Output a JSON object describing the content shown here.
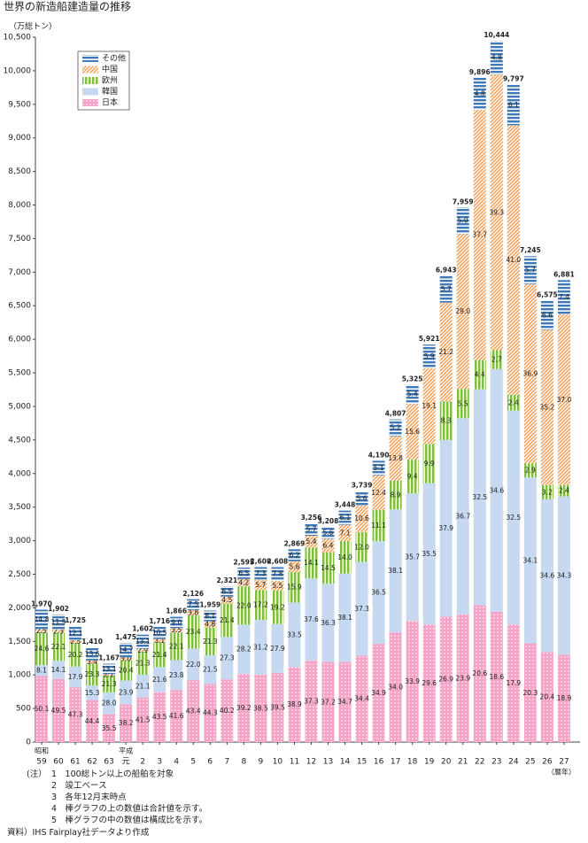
{
  "chart_data": {
    "type": "stacked_bar_percent",
    "title": "世界の新造船建造量の推移",
    "y_label": "（万総トン）",
    "x_unit": "（暦年）",
    "categories": [
      "59",
      "60",
      "61",
      "62",
      "63",
      "元",
      "2",
      "3",
      "4",
      "5",
      "6",
      "7",
      "8",
      "9",
      "10",
      "11",
      "12",
      "13",
      "14",
      "15",
      "16",
      "17",
      "18",
      "19",
      "20",
      "21",
      "22",
      "23",
      "24",
      "25",
      "26",
      "27"
    ],
    "era_labels": [
      "昭和",
      null,
      null,
      null,
      null,
      "平成",
      null,
      null,
      null,
      null,
      null,
      null,
      null,
      null,
      null,
      null,
      null,
      null,
      null,
      null,
      null,
      null,
      null,
      null,
      null,
      null,
      null,
      null,
      null,
      null,
      null,
      null
    ],
    "ylim": [
      0,
      10500
    ],
    "yticks": [
      0,
      500,
      {
        "value": 1000,
        "label": "1,000"
      },
      {
        "value": 1500,
        "label": "1,500"
      },
      {
        "value": 2000,
        "label": "2,000"
      },
      {
        "value": 2500,
        "label": "2,500"
      },
      {
        "value": 3000,
        "label": "3,000"
      },
      {
        "value": 3500,
        "label": "3,500"
      },
      {
        "value": 4000,
        "label": "4,000"
      },
      {
        "value": 4500,
        "label": "4,500"
      },
      {
        "value": 5000,
        "label": "5,000"
      },
      {
        "value": 5500,
        "label": "5,500"
      },
      {
        "value": 6000,
        "label": "6,000"
      },
      {
        "value": 6500,
        "label": "6,500"
      },
      {
        "value": 7000,
        "label": "7,000"
      },
      {
        "value": 7500,
        "label": "7,500"
      },
      {
        "value": 8000,
        "label": "8,000"
      },
      {
        "value": 8500,
        "label": "8,500"
      },
      {
        "value": 9000,
        "label": "9,000"
      },
      {
        "value": 9500,
        "label": "9,500"
      },
      {
        "value": 10000,
        "label": "10,000"
      },
      {
        "value": 10500,
        "label": "10,500"
      }
    ],
    "totals": [
      1970,
      1902,
      1725,
      1410,
      1167,
      1475,
      1602,
      1716,
      1866,
      2126,
      1959,
      2321,
      2595,
      2608,
      2608,
      2869,
      3256,
      3208,
      3448,
      3739,
      4190,
      4807,
      5325,
      5921,
      6943,
      7959,
      9896,
      10444,
      9797,
      7245,
      6575,
      6881
    ],
    "totals_labels": [
      "1,970",
      "1,902",
      "1,725",
      "1,410",
      "1,167",
      "1,475",
      "1,602",
      "1,716",
      "1,866",
      "2,126",
      "1,959",
      "2,321",
      "2,595",
      "2,608",
      "2,608",
      "2,869",
      "3,256",
      "3,208",
      "3,448",
      "3,739",
      "4,190",
      "4,807",
      "5,325",
      "5,921",
      "6,943",
      "7,959",
      "9,896",
      "10,444",
      "9,797",
      "7,245",
      "6,575",
      "6,881"
    ],
    "series": [
      {
        "name": "日本",
        "color": "#f5a3c7",
        "values": [
          50.1,
          49.5,
          47.3,
          44.4,
          35.5,
          38.2,
          41.5,
          43.5,
          41.6,
          43.4,
          44.3,
          40.2,
          39.2,
          38.5,
          39.5,
          38.9,
          37.3,
          37.2,
          34.7,
          34.4,
          34.9,
          34.0,
          33.9,
          29.6,
          26.9,
          23.9,
          20.6,
          18.6,
          17.9,
          20.3,
          20.4,
          18.9
        ],
        "value_labels": [
          "50.1",
          "49.5",
          "47.3",
          "44.4",
          "35.5",
          "38.2",
          "41.5",
          "43.5",
          "41.6",
          "43.4",
          "44.3",
          "40.2",
          "39.2",
          "38.5",
          "39.5",
          "38.9",
          "37.3",
          "37.2",
          "34.7",
          "34.4",
          "34.9",
          "34.0",
          "33.9",
          "29.6",
          "26.9",
          "23.9",
          "20.6",
          "18.6",
          "17.9",
          "20.3",
          "20.4",
          "18.9"
        ]
      },
      {
        "name": "韓国",
        "color": "#c6d9f1",
        "values": [
          8.1,
          14.1,
          17.9,
          15.3,
          28.0,
          23.9,
          21.1,
          21.6,
          23.8,
          22.0,
          21.5,
          27.3,
          28.2,
          31.2,
          27.9,
          33.5,
          37.6,
          36.3,
          38.1,
          37.3,
          36.5,
          38.1,
          35.7,
          35.5,
          37.9,
          36.7,
          32.5,
          34.6,
          32.5,
          34.1,
          34.6,
          34.3
        ],
        "value_labels": [
          "8.1",
          "14.1",
          "17.9",
          "15.3",
          "28.0",
          "23.9",
          "21.1",
          "21.6",
          "23.8",
          "22.0",
          "21.5",
          "27.3",
          "28.2",
          "31.2",
          "27.9",
          "33.5",
          "37.6",
          "36.3",
          "38.1",
          "37.3",
          "36.5",
          "38.1",
          "35.7",
          "35.5",
          "37.9",
          "36.7",
          "32.5",
          "34.6",
          "32.5",
          "34.1",
          "34.6",
          "34.3"
        ]
      },
      {
        "name": "欧州",
        "color": "#7fbf3f",
        "values": [
          24.6,
          22.1,
          20.2,
          23.3,
          21.3,
          20.4,
          21.3,
          21.4,
          22.1,
          23.4,
          21.3,
          21.4,
          22.0,
          17.2,
          19.2,
          15.9,
          14.1,
          14.5,
          14.0,
          12.0,
          11.1,
          8.9,
          9.4,
          9.9,
          8.3,
          5.5,
          4.4,
          2.7,
          2.4,
          2.9,
          3.2,
          2.4
        ],
        "value_labels": [
          "24.6",
          "22.1",
          "20.2",
          "23.3",
          "21.3",
          "20.4",
          "21.3",
          "21.4",
          "22.1",
          "23.4",
          "21.3",
          "21.4",
          "22.0",
          "17.2",
          "19.2",
          "15.9",
          "14.1",
          "14.5",
          "14.0",
          "12.0",
          "11.1",
          "8.9",
          "9.4",
          "9.9",
          "8.3",
          "5.5",
          "4.4",
          "2.7",
          "2.4",
          "2.9",
          "3.2",
          "2.4"
        ]
      },
      {
        "name": "中国",
        "color": "#f29b4e",
        "values": [
          2.5,
          2.3,
          2.5,
          3.4,
          2.1,
          3.0,
          2.9,
          3.1,
          3.5,
          3.8,
          4.8,
          4.5,
          4.2,
          5.7,
          5.5,
          5.6,
          5.4,
          6.4,
          7.1,
          10.6,
          12.4,
          13.8,
          15.6,
          19.1,
          21.2,
          29.0,
          37.7,
          39.3,
          41.0,
          36.9,
          35.2,
          37.0
        ],
        "value_labels": [
          "2.5",
          "2.3",
          "2.5",
          "3.4",
          "2.1",
          "3.0",
          "2.9",
          "3.1",
          "3.5",
          "3.8",
          "4.8",
          "4.5",
          "4.2",
          "5.7",
          "5.5",
          "5.6",
          "5.4",
          "6.4",
          "7.1",
          "10.6",
          "12.4",
          "13.8",
          "15.6",
          "19.1",
          "21.2",
          "29.0",
          "37.7",
          "39.3",
          "41.0",
          "36.9",
          "35.2",
          "37.0"
        ]
      },
      {
        "name": "その他",
        "color": "#3f79b8",
        "values": [
          14.8,
          11.9,
          12.1,
          13.6,
          13.1,
          14.7,
          13.1,
          10.5,
          9.0,
          7.5,
          8.1,
          6.5,
          6.5,
          7.3,
          7.8,
          6.2,
          5.7,
          5.6,
          6.1,
          5.6,
          5.1,
          5.2,
          5.4,
          5.9,
          5.7,
          5.0,
          4.8,
          4.8,
          6.1,
          5.7,
          6.6,
          7.4
        ],
        "value_labels": [
          "14.8",
          "11.9",
          "12.1",
          "13.6",
          "13.1",
          "14.7",
          "13.1",
          "10.5",
          "9.0",
          "7.5",
          "8.1",
          "6.5",
          "6.5",
          "7.3",
          "7.8",
          "6.2",
          "5.7",
          "5.6",
          "6.1",
          "5.6",
          "5.1",
          "5.2",
          "5.4",
          "5.9",
          "5.7",
          "5.0",
          "4.8",
          "4.8",
          "6.1",
          "5.7",
          "6.6",
          "7.4"
        ]
      }
    ]
  },
  "notes": {
    "head": "(注）",
    "items": [
      "1　100総トン以上の船舶を対象",
      "2　竣工ベース",
      "3　各年12月末時点",
      "4　棒グラフの上の数値は合計値を示す。",
      "5　棒グラフの中の数値は構成比を示す。"
    ],
    "source": "資料）IHS Fairplay社データより作成"
  }
}
